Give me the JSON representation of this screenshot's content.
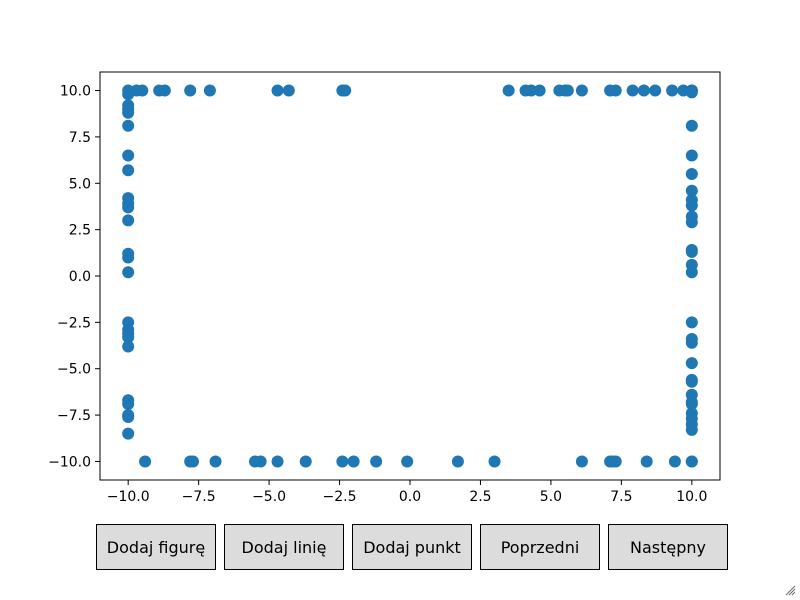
{
  "buttons": {
    "add_figure": "Dodaj figurę",
    "add_line": "Dodaj linię",
    "add_point": "Dodaj punkt",
    "previous": "Poprzedni",
    "next": "Następny"
  },
  "chart_data": {
    "type": "scatter",
    "title": "",
    "xlabel": "",
    "ylabel": "",
    "xlim": [
      -11,
      11
    ],
    "ylim": [
      -11,
      11
    ],
    "xticks": [
      -10,
      -7.5,
      -5,
      -2.5,
      0,
      2.5,
      5,
      7.5,
      10
    ],
    "yticks": [
      -10,
      -7.5,
      -5,
      -2.5,
      0,
      2.5,
      5,
      7.5,
      10
    ],
    "xtick_labels": [
      "−10.0",
      "−7.5",
      "−5.0",
      "−2.5",
      "0.0",
      "2.5",
      "5.0",
      "7.5",
      "10.0"
    ],
    "ytick_labels": [
      "−10.0",
      "−7.5",
      "−5.0",
      "−2.5",
      "0.0",
      "2.5",
      "5.0",
      "7.5",
      "10.0"
    ],
    "grid": false,
    "color": "#1f77b4",
    "series": [
      {
        "x": [
          -9.7,
          -9.5,
          -8.9,
          -8.7,
          -7.8,
          -7.1,
          -4.7,
          -4.3,
          -2.4,
          -2.3,
          3.5,
          4.1,
          4.3,
          4.6,
          5.3,
          5.5,
          5.6,
          6.1,
          7.1,
          7.3,
          7.9,
          8.3,
          8.7,
          9.3,
          9.7,
          10.0,
          -9.4,
          -7.8,
          -7.7,
          -6.9,
          -5.5,
          -5.3,
          -4.7,
          -3.7,
          -2.4,
          -2.0,
          -1.2,
          -0.1,
          1.7,
          3.0,
          6.1,
          7.1,
          7.2,
          7.3,
          8.4,
          9.4,
          10.0,
          -10,
          -10,
          -10,
          -10,
          -10,
          -10,
          -10,
          -10,
          -10,
          -10,
          -10,
          -10,
          -10,
          -10,
          -10,
          -10,
          -10,
          -10,
          -10,
          -10,
          -10,
          -10,
          -10,
          -10,
          -10,
          10,
          10,
          10,
          10,
          10,
          10,
          10,
          10,
          10,
          10,
          10,
          10,
          10,
          10,
          10,
          10,
          10,
          10,
          10,
          10,
          10,
          10,
          10,
          10,
          10,
          10,
          10,
          10,
          10
        ],
        "y": [
          10,
          10,
          10,
          10,
          10,
          10,
          10,
          10,
          10,
          10,
          10,
          10,
          10,
          10,
          10,
          10,
          10,
          10,
          10,
          10,
          10,
          10,
          10,
          10,
          10,
          10,
          -10,
          -10,
          -10,
          -10,
          -10,
          -10,
          -10,
          -10,
          -10,
          -10,
          -10,
          -10,
          -10,
          -10,
          -10,
          -10,
          -10,
          -10,
          -10,
          -10,
          -10,
          9.8,
          9.2,
          9.0,
          8.8,
          8.1,
          6.5,
          5.7,
          4.2,
          3.9,
          3.7,
          3.0,
          1.2,
          1.0,
          0.2,
          -2.5,
          -2.9,
          -3.1,
          -3.3,
          -3.8,
          -6.7,
          -6.9,
          -7.5,
          -7.6,
          -8.5,
          10.0,
          8.1,
          6.5,
          5.5,
          4.6,
          4.1,
          3.8,
          3.2,
          2.9,
          1.4,
          1.3,
          0.6,
          0.2,
          -2.5,
          -3.4,
          -3.6,
          -4.7,
          -5.6,
          -5.7,
          -6.4,
          -6.8,
          -6.9,
          -7.4,
          -7.7,
          -8.0,
          -8.3,
          -10.0,
          10.0,
          10.0,
          9.9
        ]
      }
    ]
  }
}
